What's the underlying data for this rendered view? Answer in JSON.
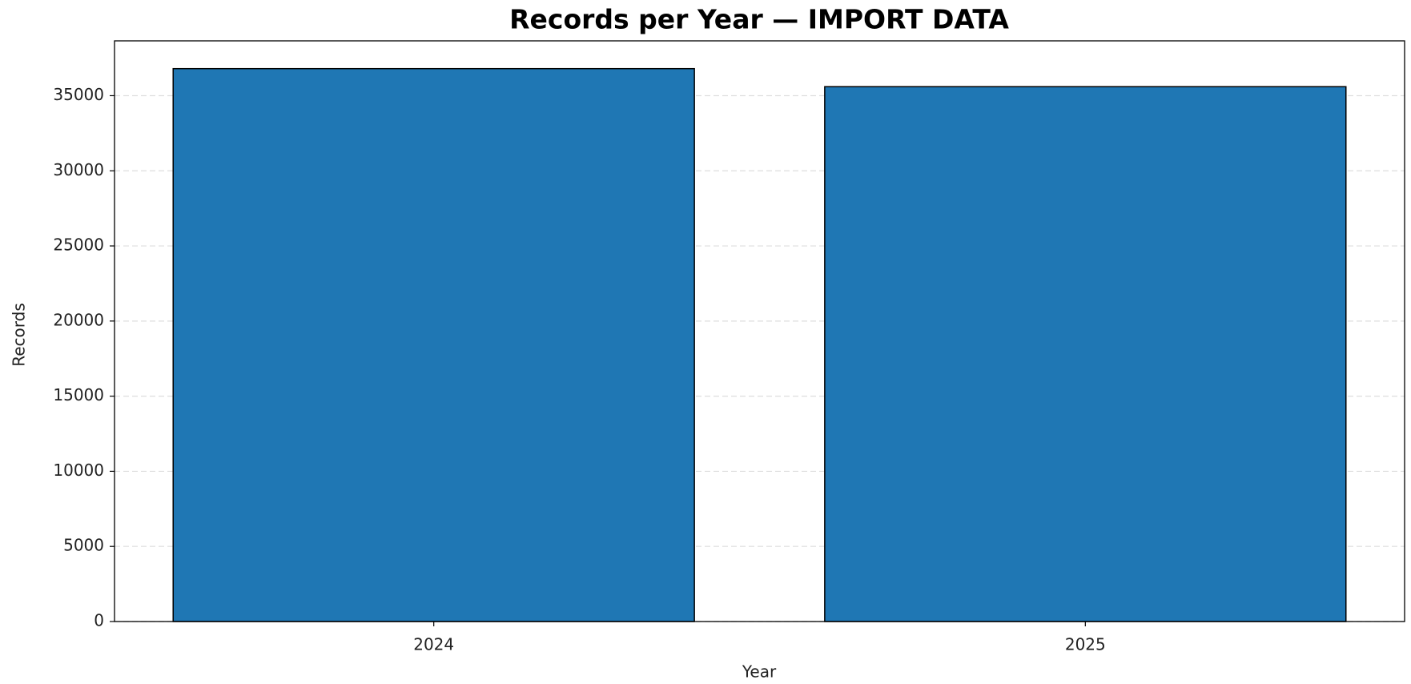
{
  "chart_data": {
    "type": "bar",
    "title": "Records per Year — IMPORT DATA",
    "x_label": "Year",
    "y_label": "Records",
    "categories": [
      "2024",
      "2025"
    ],
    "values": [
      36800,
      35600
    ],
    "color": "#1f77b4",
    "ylim": [
      0,
      38650
    ],
    "yticks": [
      0,
      5000,
      10000,
      15000,
      20000,
      25000,
      30000,
      35000
    ],
    "grid": true
  }
}
